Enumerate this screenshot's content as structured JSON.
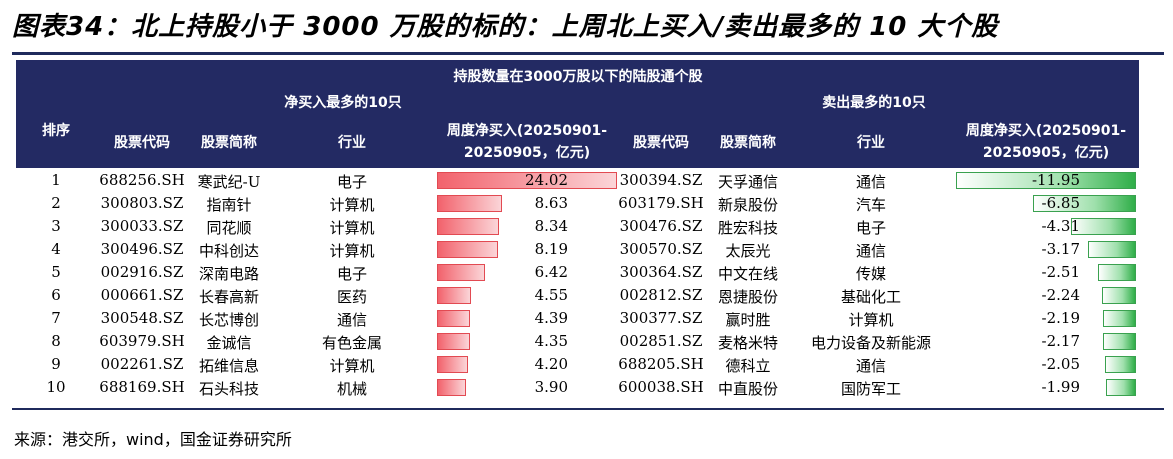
{
  "title": "图表34：北上持股小于 3000 万股的标的：上周北上买入/卖出最多的 10 大个股",
  "header": {
    "top": "持股数量在3000万股以下的陆股通个股",
    "buy_group": "净买入最多的10只",
    "sell_group": "卖出最多的10只",
    "rank": "排序",
    "code": "股票代码",
    "name": "股票简称",
    "industry": "行业",
    "weekly_line1": "周度净买入(20250901-",
    "weekly_line2": "20250905，亿元)"
  },
  "colors": {
    "header_bg": "#232a63",
    "buy_bar": "#f2626c",
    "sell_bar": "#2fae48"
  },
  "rows": [
    {
      "rank": "1",
      "buy_code": "688256.SH",
      "buy_name": "寒武纪-U",
      "buy_industry": "电子",
      "buy_value": "24.02",
      "sell_code": "300394.SZ",
      "sell_name": "天孚通信",
      "sell_industry": "通信",
      "sell_value": "-11.95"
    },
    {
      "rank": "2",
      "buy_code": "300803.SZ",
      "buy_name": "指南针",
      "buy_industry": "计算机",
      "buy_value": "8.63",
      "sell_code": "603179.SH",
      "sell_name": "新泉股份",
      "sell_industry": "汽车",
      "sell_value": "-6.85"
    },
    {
      "rank": "3",
      "buy_code": "300033.SZ",
      "buy_name": "同花顺",
      "buy_industry": "计算机",
      "buy_value": "8.34",
      "sell_code": "300476.SZ",
      "sell_name": "胜宏科技",
      "sell_industry": "电子",
      "sell_value": "-4.31"
    },
    {
      "rank": "4",
      "buy_code": "300496.SZ",
      "buy_name": "中科创达",
      "buy_industry": "计算机",
      "buy_value": "8.19",
      "sell_code": "300570.SZ",
      "sell_name": "太辰光",
      "sell_industry": "通信",
      "sell_value": "-3.17"
    },
    {
      "rank": "5",
      "buy_code": "002916.SZ",
      "buy_name": "深南电路",
      "buy_industry": "电子",
      "buy_value": "6.42",
      "sell_code": "300364.SZ",
      "sell_name": "中文在线",
      "sell_industry": "传媒",
      "sell_value": "-2.51"
    },
    {
      "rank": "6",
      "buy_code": "000661.SZ",
      "buy_name": "长春高新",
      "buy_industry": "医药",
      "buy_value": "4.55",
      "sell_code": "002812.SZ",
      "sell_name": "恩捷股份",
      "sell_industry": "基础化工",
      "sell_value": "-2.24"
    },
    {
      "rank": "7",
      "buy_code": "300548.SZ",
      "buy_name": "长芯博创",
      "buy_industry": "通信",
      "buy_value": "4.39",
      "sell_code": "300377.SZ",
      "sell_name": "赢时胜",
      "sell_industry": "计算机",
      "sell_value": "-2.19"
    },
    {
      "rank": "8",
      "buy_code": "603979.SH",
      "buy_name": "金诚信",
      "buy_industry": "有色金属",
      "buy_value": "4.35",
      "sell_code": "002851.SZ",
      "sell_name": "麦格米特",
      "sell_industry": "电力设备及新能源",
      "sell_value": "-2.17"
    },
    {
      "rank": "9",
      "buy_code": "002261.SZ",
      "buy_name": "拓维信息",
      "buy_industry": "计算机",
      "buy_value": "4.20",
      "sell_code": "688205.SH",
      "sell_name": "德科立",
      "sell_industry": "通信",
      "sell_value": "-2.05"
    },
    {
      "rank": "10",
      "buy_code": "688169.SH",
      "buy_name": "石头科技",
      "buy_industry": "机械",
      "buy_value": "3.90",
      "sell_code": "600038.SH",
      "sell_name": "中直股份",
      "sell_industry": "国防军工",
      "sell_value": "-1.99"
    }
  ],
  "source": "来源：港交所，wind，国金证券研究所"
}
